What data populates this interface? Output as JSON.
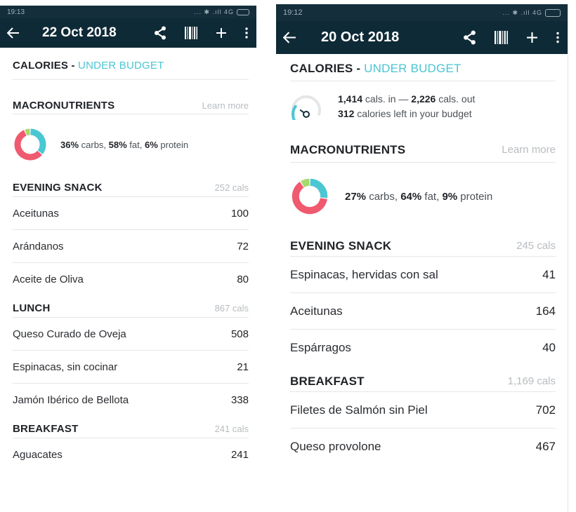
{
  "left": {
    "status": {
      "time": "19:13",
      "signal": "... ✱ .ıll 4G"
    },
    "appbar": {
      "date": "22 Oct 2018"
    },
    "calories": {
      "label": "CALORIES",
      "sep": " - ",
      "status": "UNDER BUDGET"
    },
    "macros": {
      "title": "MACRONUTRIENTS",
      "learn_more": "Learn more",
      "carbs_pct": "36%",
      "carbs_label": " carbs, ",
      "fat_pct": "58%",
      "fat_label": " fat, ",
      "protein_pct": "6%",
      "protein_label": " protein",
      "values": {
        "carbs": 36,
        "fat": 58,
        "protein": 6
      }
    },
    "meals": [
      {
        "name": "EVENING SNACK",
        "cals": "252 cals",
        "items": [
          {
            "name": "Aceitunas",
            "value": "100"
          },
          {
            "name": "Arándanos",
            "value": "72"
          },
          {
            "name": "Aceite de Oliva",
            "value": "80"
          }
        ]
      },
      {
        "name": "LUNCH",
        "cals": "867 cals",
        "items": [
          {
            "name": "Queso Curado de Oveja",
            "value": "508"
          },
          {
            "name": "Espinacas, sin cocinar",
            "value": "21"
          },
          {
            "name": "Jamón Ibérico de Bellota",
            "value": "338"
          }
        ]
      },
      {
        "name": "BREAKFAST",
        "cals": "241 cals",
        "items": [
          {
            "name": "Aguacates",
            "value": "241"
          }
        ]
      }
    ]
  },
  "right": {
    "status": {
      "time": "19:12",
      "signal": "... ✱ .ıll 4G"
    },
    "appbar": {
      "date": "20 Oct 2018"
    },
    "calories": {
      "label": "CALORIES",
      "sep": " - ",
      "status": "UNDER BUDGET"
    },
    "budget": {
      "in_value": "1,414",
      "in_label": " cals. in — ",
      "out_value": "2,226",
      "out_label": " cals. out",
      "left_value": "312",
      "left_label": " calories left in your budget",
      "gauge_fraction": 0.3
    },
    "macros": {
      "title": "MACRONUTRIENTS",
      "learn_more": "Learn more",
      "carbs_pct": "27%",
      "carbs_label": " carbs, ",
      "fat_pct": "64%",
      "fat_label": " fat, ",
      "protein_pct": "9%",
      "protein_label": " protein",
      "values": {
        "carbs": 27,
        "fat": 64,
        "protein": 9
      }
    },
    "meals": [
      {
        "name": "EVENING SNACK",
        "cals": "245 cals",
        "items": [
          {
            "name": "Espinacas, hervidas con sal",
            "value": "41"
          },
          {
            "name": "Aceitunas",
            "value": "164"
          },
          {
            "name": "Espárragos",
            "value": "40"
          }
        ]
      },
      {
        "name": "BREAKFAST",
        "cals": "1,169 cals",
        "items": [
          {
            "name": "Filetes de Salmón sin Piel",
            "value": "702"
          },
          {
            "name": "Queso provolone",
            "value": "467"
          }
        ]
      }
    ]
  },
  "colors": {
    "carbs": "#4bc6d3",
    "fat": "#ef5a6f",
    "protein": "#a6d96a",
    "appbar": "#0e2a36",
    "accent": "#4bc6d3"
  },
  "icons": {
    "back": "arrow-left-icon",
    "share": "share-icon",
    "barcode": "barcode-icon",
    "add": "plus-icon",
    "more": "more-vert-icon"
  }
}
